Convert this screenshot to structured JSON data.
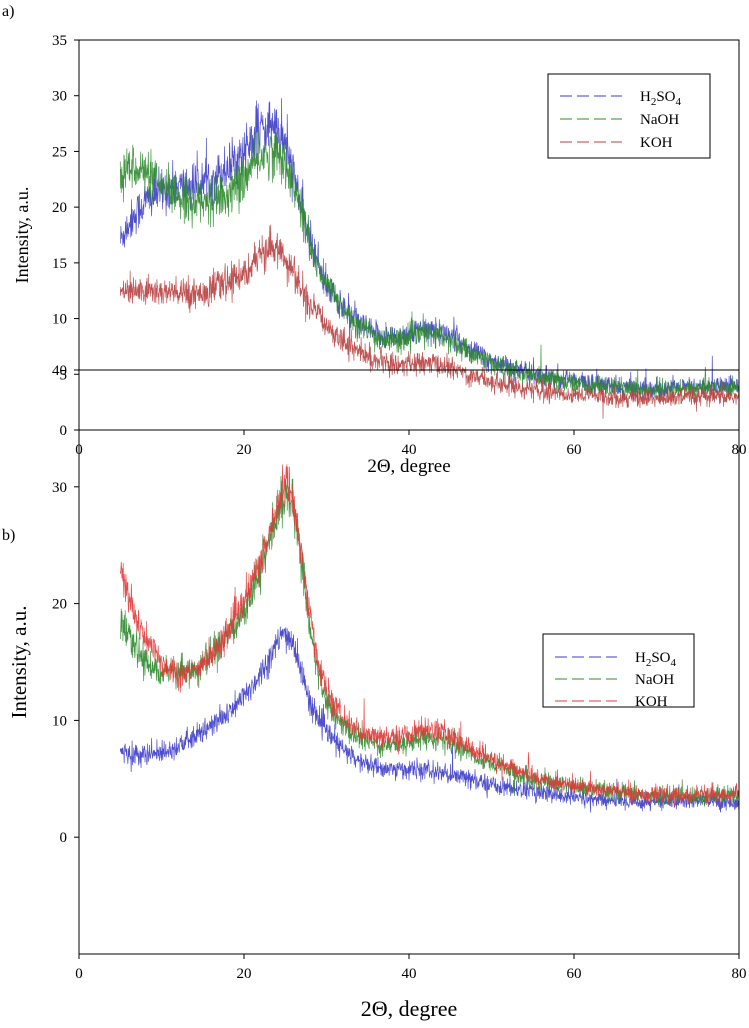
{
  "chart_data": [
    {
      "panel_label": "a)",
      "type": "line",
      "xlabel": "2Θ, degree",
      "ylabel": "Intensity, a.u.",
      "xlim": [
        0,
        80
      ],
      "ylim": [
        0,
        35
      ],
      "xticks": [
        0,
        20,
        40,
        60,
        80
      ],
      "yticks": [
        0,
        5,
        10,
        15,
        20,
        25,
        30,
        35
      ],
      "legend_position": "top-right",
      "series": [
        {
          "name": "H2SO4",
          "label_main": "H",
          "label_sub1": "2",
          "label_mid": "SO",
          "label_sub2": "4",
          "color": "#3c3cc8",
          "points": [
            [
              5,
              17
            ],
            [
              6,
              18.5
            ],
            [
              8,
              20.5
            ],
            [
              10,
              21.5
            ],
            [
              12,
              21.8
            ],
            [
              14,
              22
            ],
            [
              16,
              22.5
            ],
            [
              18,
              23.5
            ],
            [
              20,
              25
            ],
            [
              22,
              27
            ],
            [
              23.5,
              27.5
            ],
            [
              25,
              25.5
            ],
            [
              26,
              23
            ],
            [
              27,
              20
            ],
            [
              28,
              17
            ],
            [
              29,
              15
            ],
            [
              30,
              13
            ],
            [
              32,
              11
            ],
            [
              34,
              9.5
            ],
            [
              36,
              8.5
            ],
            [
              38,
              8.3
            ],
            [
              40,
              8.6
            ],
            [
              42,
              9
            ],
            [
              44,
              8.8
            ],
            [
              46,
              8
            ],
            [
              48,
              7
            ],
            [
              50,
              6.2
            ],
            [
              52,
              5.6
            ],
            [
              55,
              5
            ],
            [
              58,
              4.6
            ],
            [
              62,
              4.2
            ],
            [
              66,
              3.8
            ],
            [
              70,
              3.7
            ],
            [
              75,
              3.8
            ],
            [
              80,
              4
            ]
          ]
        },
        {
          "name": "NaOH",
          "label_main": "NaOH",
          "color": "#2e8b2e",
          "points": [
            [
              5,
              23
            ],
            [
              6,
              23.5
            ],
            [
              7,
              23.8
            ],
            [
              8,
              23
            ],
            [
              10,
              21.5
            ],
            [
              12,
              21
            ],
            [
              14,
              20.5
            ],
            [
              16,
              20.5
            ],
            [
              18,
              21
            ],
            [
              20,
              22.5
            ],
            [
              22,
              24.5
            ],
            [
              23.5,
              25
            ],
            [
              25,
              24
            ],
            [
              26,
              22
            ],
            [
              27,
              19.5
            ],
            [
              28,
              16.5
            ],
            [
              29,
              14.5
            ],
            [
              30,
              13
            ],
            [
              32,
              11
            ],
            [
              34,
              9.3
            ],
            [
              36,
              8.3
            ],
            [
              38,
              8
            ],
            [
              40,
              8.3
            ],
            [
              42,
              8.8
            ],
            [
              44,
              8.4
            ],
            [
              46,
              7.5
            ],
            [
              48,
              6.7
            ],
            [
              50,
              6
            ],
            [
              52,
              5.4
            ],
            [
              55,
              4.8
            ],
            [
              58,
              4.4
            ],
            [
              62,
              4
            ],
            [
              66,
              3.7
            ],
            [
              70,
              3.6
            ],
            [
              75,
              3.7
            ],
            [
              80,
              3.9
            ]
          ]
        },
        {
          "name": "KOH",
          "label_main": "KOH",
          "color": "#b84040",
          "points": [
            [
              5,
              12.3
            ],
            [
              8,
              12.5
            ],
            [
              10,
              12.4
            ],
            [
              12,
              12.2
            ],
            [
              14,
              12.3
            ],
            [
              16,
              12.6
            ],
            [
              18,
              13.2
            ],
            [
              20,
              14.2
            ],
            [
              22,
              15.5
            ],
            [
              24,
              16.5
            ],
            [
              25,
              15.5
            ],
            [
              26,
              14
            ],
            [
              27,
              12.5
            ],
            [
              28,
              11
            ],
            [
              30,
              9.5
            ],
            [
              32,
              8
            ],
            [
              34,
              7
            ],
            [
              36,
              6.2
            ],
            [
              38,
              5.9
            ],
            [
              40,
              5.9
            ],
            [
              42,
              6
            ],
            [
              44,
              5.8
            ],
            [
              46,
              5.3
            ],
            [
              48,
              4.8
            ],
            [
              50,
              4.4
            ],
            [
              52,
              4
            ],
            [
              55,
              3.6
            ],
            [
              58,
              3.3
            ],
            [
              62,
              3.1
            ],
            [
              66,
              2.9
            ],
            [
              70,
              2.8
            ],
            [
              75,
              2.9
            ],
            [
              80,
              3
            ]
          ]
        }
      ]
    },
    {
      "panel_label": "b)",
      "type": "line",
      "xlabel": "2Θ, degree",
      "ylabel": "Intensity, a.u.",
      "xlim": [
        0,
        80
      ],
      "ylim": [
        -10,
        40
      ],
      "xticks": [
        0,
        20,
        40,
        60,
        80
      ],
      "yticks": [
        0,
        10,
        20,
        30,
        40
      ],
      "legend_position": "top-right",
      "series": [
        {
          "name": "H2SO4",
          "label_main": "H",
          "label_sub1": "2",
          "label_mid": "SO",
          "label_sub2": "4",
          "color": "#3c3cc8",
          "points": [
            [
              5,
              7.2
            ],
            [
              8,
              7
            ],
            [
              10,
              7.3
            ],
            [
              12,
              7.8
            ],
            [
              14,
              8.5
            ],
            [
              16,
              9.5
            ],
            [
              18,
              10.5
            ],
            [
              20,
              12
            ],
            [
              22,
              14
            ],
            [
              24,
              16.5
            ],
            [
              25,
              17.5
            ],
            [
              26,
              16.5
            ],
            [
              27,
              14
            ],
            [
              28,
              11.5
            ],
            [
              30,
              9
            ],
            [
              32,
              7.5
            ],
            [
              34,
              6.5
            ],
            [
              36,
              6
            ],
            [
              38,
              5.8
            ],
            [
              40,
              5.8
            ],
            [
              42,
              5.7
            ],
            [
              44,
              5.5
            ],
            [
              46,
              5.2
            ],
            [
              48,
              4.8
            ],
            [
              50,
              4.5
            ],
            [
              55,
              3.9
            ],
            [
              60,
              3.4
            ],
            [
              65,
              3.1
            ],
            [
              70,
              3
            ],
            [
              75,
              3.1
            ],
            [
              80,
              3
            ]
          ]
        },
        {
          "name": "NaOH",
          "label_main": "NaOH",
          "color": "#2e8b2e",
          "points": [
            [
              5,
              18.5
            ],
            [
              6,
              17
            ],
            [
              7,
              16
            ],
            [
              8,
              15
            ],
            [
              10,
              14.2
            ],
            [
              12,
              14
            ],
            [
              14,
              14.3
            ],
            [
              16,
              15.5
            ],
            [
              18,
              17
            ],
            [
              20,
              19.5
            ],
            [
              22,
              23
            ],
            [
              24,
              27.5
            ],
            [
              25,
              29.5
            ],
            [
              26,
              28
            ],
            [
              27,
              23.5
            ],
            [
              28,
              18
            ],
            [
              29,
              14
            ],
            [
              30,
              11.5
            ],
            [
              32,
              9.5
            ],
            [
              34,
              8.5
            ],
            [
              36,
              8
            ],
            [
              38,
              7.9
            ],
            [
              40,
              8.2
            ],
            [
              42,
              8.6
            ],
            [
              44,
              8.4
            ],
            [
              46,
              7.8
            ],
            [
              48,
              7
            ],
            [
              50,
              6.3
            ],
            [
              55,
              5
            ],
            [
              60,
              4.3
            ],
            [
              65,
              3.8
            ],
            [
              70,
              3.5
            ],
            [
              75,
              3.5
            ],
            [
              80,
              3.6
            ]
          ]
        },
        {
          "name": "KOH",
          "label_main": "KOH",
          "color": "#e03a3a",
          "points": [
            [
              5,
              23
            ],
            [
              6,
              20.5
            ],
            [
              7,
              18.5
            ],
            [
              8,
              17
            ],
            [
              10,
              15
            ],
            [
              12,
              14
            ],
            [
              14,
              14.2
            ],
            [
              16,
              15.5
            ],
            [
              18,
              17.5
            ],
            [
              20,
              20
            ],
            [
              22,
              23.5
            ],
            [
              24,
              28
            ],
            [
              25,
              30.5
            ],
            [
              26,
              29
            ],
            [
              27,
              24
            ],
            [
              28,
              19
            ],
            [
              29,
              15
            ],
            [
              30,
              12.5
            ],
            [
              32,
              10.2
            ],
            [
              34,
              9
            ],
            [
              36,
              8.5
            ],
            [
              38,
              8.5
            ],
            [
              40,
              8.8
            ],
            [
              42,
              9.3
            ],
            [
              44,
              9
            ],
            [
              46,
              8.2
            ],
            [
              48,
              7.4
            ],
            [
              50,
              6.6
            ],
            [
              55,
              5.2
            ],
            [
              60,
              4.4
            ],
            [
              65,
              3.9
            ],
            [
              70,
              3.6
            ],
            [
              75,
              3.6
            ],
            [
              80,
              3.7
            ]
          ]
        }
      ]
    }
  ]
}
